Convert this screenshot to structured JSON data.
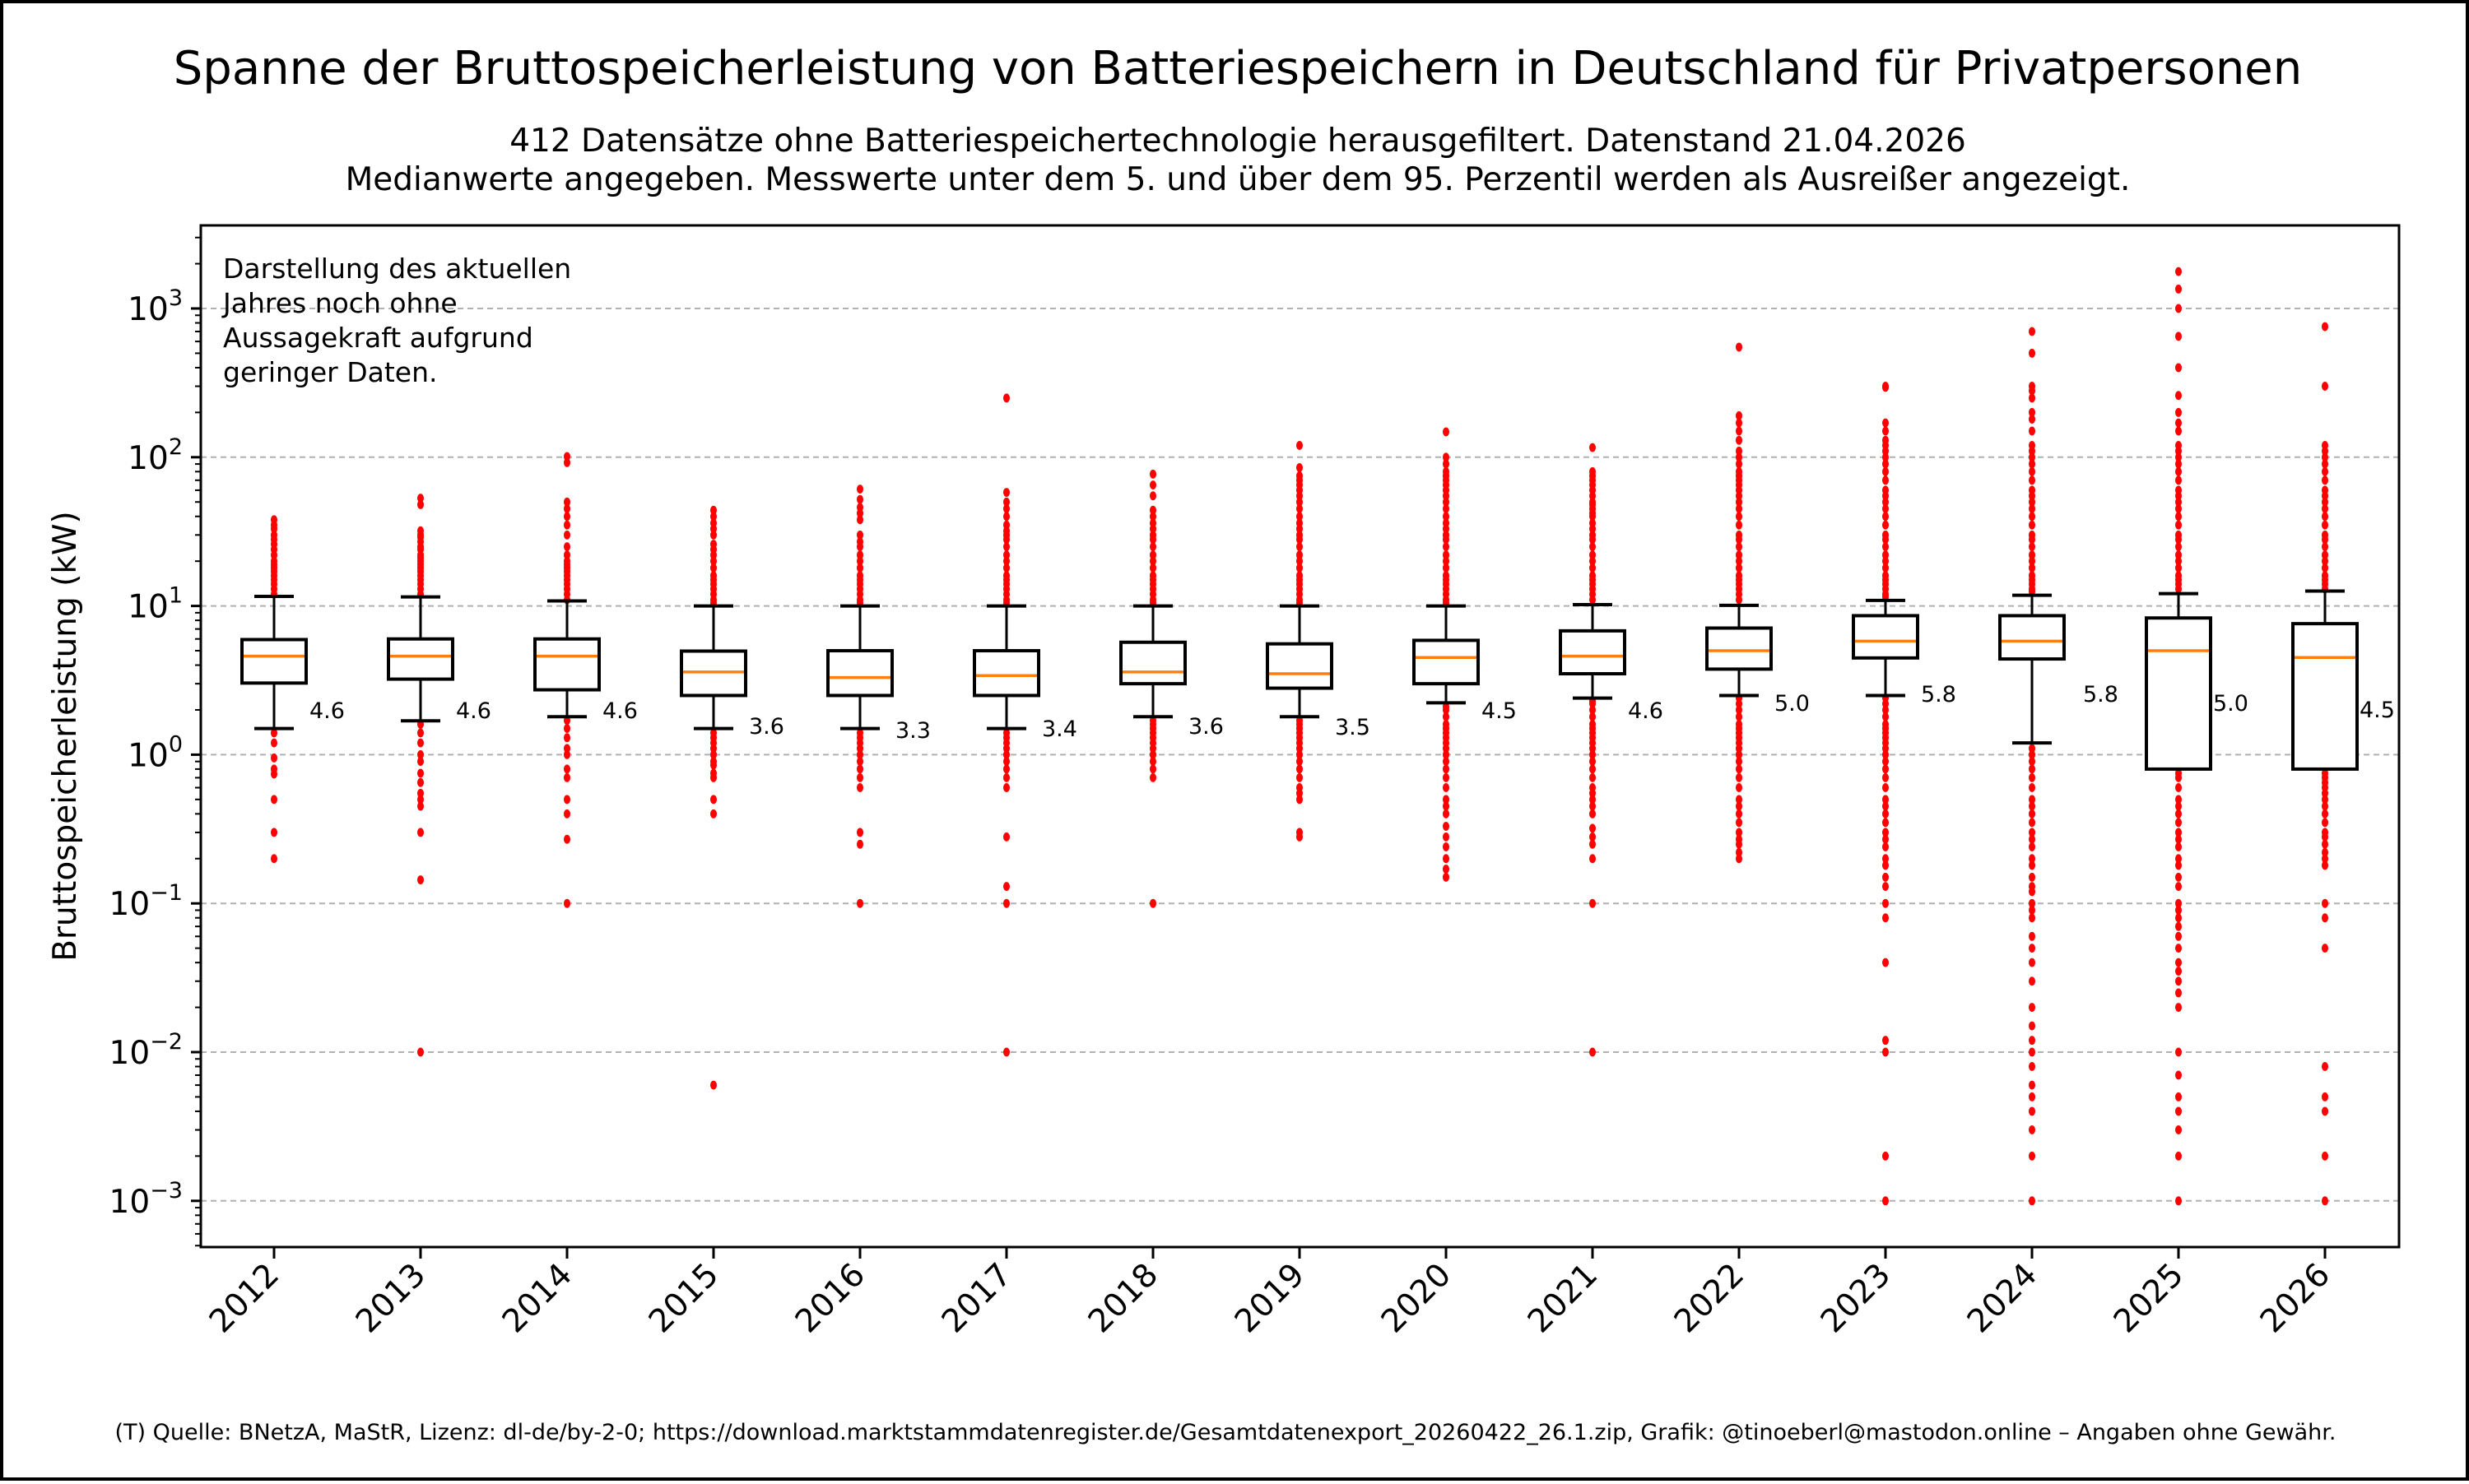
{
  "chart_data": {
    "type": "boxplot",
    "title": "Spanne der Bruttospeicherleistung von Batteriespeichern in Deutschland für Privatpersonen",
    "subtitle_lines": [
      "412 Datensätze ohne Batteriespeichertechnologie herausgefiltert. Datenstand 21.04.2026",
      "Medianwerte angegeben. Messwerte unter dem 5. und über dem 95. Perzentil werden als Ausreißer angezeigt."
    ],
    "xlabel": "",
    "ylabel": "Bruttospeicherleistung (kW)",
    "yscale": "log",
    "ylim": [
      0.0005,
      3500
    ],
    "grid": "y-major dashed",
    "yticks": [
      {
        "value": 0.001,
        "base": "10",
        "exp": "−3"
      },
      {
        "value": 0.01,
        "base": "10",
        "exp": "−2"
      },
      {
        "value": 0.1,
        "base": "10",
        "exp": "−1"
      },
      {
        "value": 1,
        "base": "10",
        "exp": "0"
      },
      {
        "value": 10,
        "base": "10",
        "exp": "1"
      },
      {
        "value": 100,
        "base": "10",
        "exp": "2"
      },
      {
        "value": 1000,
        "base": "10",
        "exp": "3"
      }
    ],
    "annotation": [
      "Darstellung des aktuellen",
      "Jahres noch ohne",
      "Aussagekraft aufgrund",
      "geringer Daten."
    ],
    "colors": {
      "box": "#000000",
      "median": "#ff7f0e",
      "outlier": "#ff0000",
      "grid": "#b0b0b0"
    },
    "categories": [
      "2012",
      "2013",
      "2014",
      "2015",
      "2016",
      "2017",
      "2018",
      "2019",
      "2020",
      "2021",
      "2022",
      "2023",
      "2024",
      "2025",
      "2026"
    ],
    "boxes": [
      {
        "year": "2012",
        "whislo": 1.5,
        "q1": 3.03,
        "med": 4.6,
        "q3": 5.94,
        "whishi": 11.6,
        "median_label": "4.6",
        "outliers_high": [
          12,
          13,
          14,
          15,
          16,
          17,
          18,
          19,
          20,
          22,
          24,
          26,
          28,
          30,
          33,
          35,
          38
        ],
        "outliers_low": [
          1.4,
          1.2,
          0.95,
          0.8,
          0.74,
          0.5,
          0.3,
          0.2
        ]
      },
      {
        "year": "2013",
        "whislo": 1.69,
        "q1": 3.22,
        "med": 4.6,
        "q3": 6.0,
        "whishi": 11.5,
        "median_label": "4.6",
        "outliers_high": [
          12,
          13,
          14,
          15,
          16,
          17,
          18,
          19,
          20,
          21,
          22,
          24,
          25,
          27,
          29,
          30,
          32,
          48,
          53
        ],
        "outliers_low": [
          1.6,
          1.4,
          1.2,
          1.0,
          0.9,
          0.75,
          0.65,
          0.55,
          0.5,
          0.45,
          0.3,
          0.144,
          0.01
        ]
      },
      {
        "year": "2014",
        "whislo": 1.8,
        "q1": 2.73,
        "med": 4.6,
        "q3": 6.0,
        "whishi": 10.8,
        "median_label": "4.6",
        "outliers_high": [
          11,
          12,
          13,
          14,
          15,
          16,
          17,
          18,
          19,
          20,
          22,
          25,
          30,
          35,
          40,
          45,
          50,
          92,
          101
        ],
        "outliers_low": [
          1.7,
          1.5,
          1.3,
          1.1,
          1.0,
          0.8,
          0.7,
          0.5,
          0.4,
          0.27,
          0.1
        ]
      },
      {
        "year": "2015",
        "whislo": 1.5,
        "q1": 2.5,
        "med": 3.6,
        "q3": 4.97,
        "whishi": 10,
        "median_label": "3.6",
        "outliers_high": [
          10.5,
          11,
          12,
          13,
          14,
          15,
          16,
          18,
          20,
          22,
          24,
          26,
          30,
          33,
          36,
          40,
          44
        ],
        "outliers_low": [
          1.4,
          1.3,
          1.2,
          1.1,
          1.0,
          0.9,
          0.85,
          0.75,
          0.7,
          0.5,
          0.4,
          0.006
        ]
      },
      {
        "year": "2016",
        "whislo": 1.5,
        "q1": 2.5,
        "med": 3.3,
        "q3": 5.0,
        "whishi": 10,
        "median_label": "3.3",
        "outliers_high": [
          10.5,
          11,
          12,
          13,
          14,
          15,
          16,
          18,
          20,
          22,
          25,
          27,
          30,
          38,
          42,
          46,
          52,
          61
        ],
        "outliers_low": [
          1.4,
          1.3,
          1.2,
          1.1,
          1.0,
          0.9,
          0.8,
          0.7,
          0.6,
          0.3,
          0.25,
          0.1
        ]
      },
      {
        "year": "2017",
        "whislo": 1.5,
        "q1": 2.5,
        "med": 3.4,
        "q3": 5.0,
        "whishi": 10,
        "median_label": "3.4",
        "outliers_high": [
          10.5,
          11,
          12,
          13,
          14,
          15,
          16,
          18,
          20,
          22,
          25,
          28,
          30,
          32,
          35,
          40,
          45,
          50,
          58,
          250
        ],
        "outliers_low": [
          1.4,
          1.3,
          1.2,
          1.1,
          1.0,
          0.9,
          0.8,
          0.7,
          0.6,
          0.28,
          0.13,
          0.1,
          0.01
        ]
      },
      {
        "year": "2018",
        "whislo": 1.8,
        "q1": 3.0,
        "med": 3.6,
        "q3": 5.7,
        "whishi": 10,
        "median_label": "3.6",
        "outliers_high": [
          10.5,
          11,
          12,
          13,
          14,
          15,
          16,
          18,
          20,
          22,
          25,
          28,
          30,
          33,
          36,
          40,
          44,
          55,
          65,
          77
        ],
        "outliers_low": [
          1.7,
          1.6,
          1.5,
          1.4,
          1.3,
          1.2,
          1.1,
          1.0,
          0.9,
          0.8,
          0.7,
          0.1
        ]
      },
      {
        "year": "2019",
        "whislo": 1.8,
        "q1": 2.8,
        "med": 3.5,
        "q3": 5.56,
        "whishi": 10,
        "median_label": "3.5",
        "outliers_high": [
          10.5,
          11,
          12,
          13,
          14,
          15,
          16,
          18,
          20,
          22,
          25,
          28,
          30,
          33,
          36,
          40,
          45,
          50,
          55,
          60,
          65,
          70,
          75,
          85,
          120
        ],
        "outliers_low": [
          1.7,
          1.6,
          1.5,
          1.4,
          1.3,
          1.2,
          1.1,
          1.0,
          0.9,
          0.8,
          0.7,
          0.6,
          0.55,
          0.5,
          0.3,
          0.28
        ]
      },
      {
        "year": "2020",
        "whislo": 2.23,
        "q1": 3.0,
        "med": 4.5,
        "q3": 5.87,
        "whishi": 10,
        "median_label": "4.5",
        "outliers_high": [
          10.5,
          11,
          12,
          13,
          14,
          15,
          16,
          18,
          20,
          22,
          25,
          28,
          30,
          33,
          36,
          40,
          45,
          50,
          55,
          60,
          65,
          70,
          75,
          80,
          90,
          100,
          148
        ],
        "outliers_low": [
          2.1,
          2.0,
          1.8,
          1.6,
          1.5,
          1.4,
          1.3,
          1.2,
          1.1,
          1.0,
          0.9,
          0.8,
          0.7,
          0.6,
          0.5,
          0.45,
          0.4,
          0.33,
          0.28,
          0.24,
          0.2,
          0.17,
          0.15
        ]
      },
      {
        "year": "2021",
        "whislo": 2.4,
        "q1": 3.5,
        "med": 4.6,
        "q3": 6.8,
        "whishi": 10.2,
        "median_label": "4.6",
        "outliers_high": [
          11,
          12,
          13,
          14,
          15,
          16,
          18,
          20,
          22,
          25,
          28,
          30,
          33,
          36,
          40,
          42,
          45,
          48,
          50,
          55,
          60,
          65,
          70,
          75,
          80,
          116
        ],
        "outliers_low": [
          2.3,
          2.2,
          2.0,
          1.8,
          1.6,
          1.5,
          1.4,
          1.3,
          1.2,
          1.1,
          1.0,
          0.9,
          0.8,
          0.7,
          0.6,
          0.55,
          0.5,
          0.45,
          0.4,
          0.32,
          0.28,
          0.25,
          0.2,
          0.1,
          0.01
        ]
      },
      {
        "year": "2022",
        "whislo": 2.5,
        "q1": 3.76,
        "med": 5.0,
        "q3": 7.1,
        "whishi": 10.1,
        "median_label": "5.0",
        "outliers_high": [
          11,
          12,
          13,
          14,
          15,
          16,
          18,
          20,
          22,
          25,
          28,
          30,
          35,
          40,
          45,
          50,
          55,
          60,
          65,
          70,
          75,
          80,
          90,
          100,
          110,
          130,
          150,
          170,
          190,
          550
        ],
        "outliers_low": [
          2.4,
          2.2,
          2.0,
          1.8,
          1.6,
          1.5,
          1.4,
          1.3,
          1.2,
          1.1,
          1.0,
          0.9,
          0.8,
          0.7,
          0.6,
          0.5,
          0.45,
          0.4,
          0.35,
          0.3,
          0.27,
          0.25,
          0.22,
          0.2
        ]
      },
      {
        "year": "2023",
        "whislo": 2.5,
        "q1": 4.47,
        "med": 5.8,
        "q3": 8.6,
        "whishi": 10.9,
        "median_label": "5.8",
        "outliers_high": [
          11.5,
          12,
          13,
          14,
          15,
          16,
          18,
          20,
          22,
          25,
          28,
          30,
          35,
          40,
          45,
          50,
          55,
          60,
          70,
          80,
          90,
          100,
          110,
          120,
          130,
          150,
          170,
          295,
          300
        ],
        "outliers_low": [
          2.4,
          2.2,
          2.0,
          1.8,
          1.6,
          1.5,
          1.4,
          1.3,
          1.2,
          1.1,
          1.0,
          0.9,
          0.8,
          0.7,
          0.6,
          0.5,
          0.45,
          0.4,
          0.35,
          0.3,
          0.27,
          0.24,
          0.2,
          0.18,
          0.15,
          0.13,
          0.1,
          0.08,
          0.04,
          0.012,
          0.01,
          0.002,
          0.001
        ]
      },
      {
        "year": "2024",
        "whislo": 1.2,
        "q1": 4.4,
        "med": 5.8,
        "q3": 8.6,
        "whishi": 11.8,
        "median_label": "5.8",
        "outliers_high": [
          12.5,
          13,
          14,
          15,
          16,
          18,
          20,
          22,
          25,
          28,
          30,
          35,
          40,
          45,
          50,
          55,
          60,
          70,
          80,
          90,
          100,
          110,
          120,
          150,
          180,
          200,
          250,
          280,
          300,
          500,
          700
        ],
        "outliers_low": [
          1.1,
          1.0,
          0.9,
          0.8,
          0.7,
          0.6,
          0.5,
          0.45,
          0.4,
          0.35,
          0.3,
          0.27,
          0.24,
          0.2,
          0.18,
          0.15,
          0.13,
          0.12,
          0.1,
          0.09,
          0.08,
          0.06,
          0.05,
          0.04,
          0.03,
          0.02,
          0.015,
          0.012,
          0.01,
          0.008,
          0.006,
          0.005,
          0.004,
          0.003,
          0.002,
          0.001
        ]
      },
      {
        "year": "2025",
        "whislo": 0.8,
        "q1": 0.8,
        "med": 5.0,
        "q3": 8.3,
        "whishi": 12.1,
        "median_label": "5.0",
        "outliers_high": [
          13,
          14,
          15,
          16,
          18,
          20,
          22,
          25,
          28,
          30,
          35,
          40,
          45,
          50,
          55,
          60,
          70,
          80,
          90,
          100,
          110,
          120,
          150,
          170,
          200,
          260,
          400,
          650,
          1000,
          1350,
          1770
        ],
        "outliers_low": [
          0.75,
          0.7,
          0.6,
          0.5,
          0.45,
          0.4,
          0.35,
          0.3,
          0.27,
          0.24,
          0.2,
          0.18,
          0.15,
          0.13,
          0.1,
          0.09,
          0.08,
          0.07,
          0.06,
          0.05,
          0.04,
          0.035,
          0.03,
          0.025,
          0.02,
          0.01,
          0.007,
          0.005,
          0.004,
          0.003,
          0.002,
          0.001
        ]
      },
      {
        "year": "2026",
        "whislo": 0.8,
        "q1": 0.8,
        "med": 4.5,
        "q3": 7.6,
        "whishi": 12.6,
        "median_label": "4.5",
        "outliers_high": [
          13,
          14,
          15,
          16,
          18,
          20,
          22,
          25,
          28,
          30,
          35,
          40,
          45,
          50,
          55,
          60,
          70,
          80,
          90,
          100,
          110,
          120,
          300,
          755
        ],
        "outliers_low": [
          0.75,
          0.7,
          0.65,
          0.6,
          0.55,
          0.5,
          0.45,
          0.4,
          0.35,
          0.3,
          0.28,
          0.25,
          0.22,
          0.2,
          0.18,
          0.1,
          0.08,
          0.05,
          0.008,
          0.005,
          0.004,
          0.002,
          0.001
        ]
      }
    ]
  },
  "footer": "(T) Quelle: BNetzA, MaStR, Lizenz: dl-de/by-2-0; https://download.marktstammdatenregister.de/Gesamtdatenexport_20260422_26.1.zip, Grafik: @tinoeberl@mastodon.online – Angaben ohne Gewähr."
}
